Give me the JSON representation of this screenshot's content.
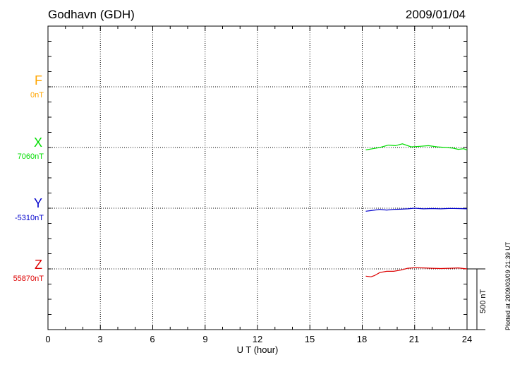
{
  "header": {
    "station": "Godhavn (GDH)",
    "date": "2009/01/04"
  },
  "side_note": "Plotted at 2009/03/09 21:39 UT",
  "scale_bar_label": "500 nT",
  "colors": {
    "F": "#ffa500",
    "X": "#00dd00",
    "Y": "#0000cc",
    "Z": "#dd0000"
  },
  "chart_data": {
    "type": "line",
    "title": "Godhavn (GDH)",
    "xlabel": "U T (hour)",
    "xlim": [
      0,
      24
    ],
    "xticks": [
      "0",
      "3",
      "6",
      "9",
      "12",
      "15",
      "18",
      "21",
      "24"
    ],
    "scale_nT": 500,
    "grid": true,
    "components": [
      {
        "name": "F",
        "baseline_label": "0nT",
        "values": []
      },
      {
        "name": "X",
        "baseline_label": "7060nT",
        "x": [
          18.2,
          18.6,
          19.0,
          19.5,
          19.9,
          20.3,
          20.8,
          21.3,
          21.8,
          22.3,
          22.8,
          23.2,
          23.5,
          23.8,
          24.0
        ],
        "y": [
          -20,
          -10,
          0,
          20,
          15,
          30,
          5,
          10,
          15,
          5,
          0,
          -5,
          -15,
          -10,
          -20
        ]
      },
      {
        "name": "Y",
        "baseline_label": "-5310nT",
        "x": [
          18.2,
          18.5,
          19.0,
          19.4,
          19.8,
          20.2,
          20.6,
          21.0,
          21.5,
          22.0,
          22.5,
          23.0,
          23.5,
          24.0
        ],
        "y": [
          -25,
          -20,
          -10,
          -15,
          -10,
          -8,
          -5,
          0,
          -5,
          -3,
          -5,
          -2,
          -3,
          -5
        ]
      },
      {
        "name": "Z",
        "baseline_label": "55870nT",
        "x": [
          18.2,
          18.5,
          18.7,
          19.0,
          19.4,
          19.8,
          20.2,
          20.6,
          21.0,
          21.5,
          22.0,
          22.5,
          23.0,
          23.5,
          24.0
        ],
        "y": [
          -60,
          -65,
          -55,
          -30,
          -20,
          -20,
          -10,
          5,
          10,
          8,
          5,
          3,
          5,
          8,
          0
        ]
      }
    ]
  }
}
